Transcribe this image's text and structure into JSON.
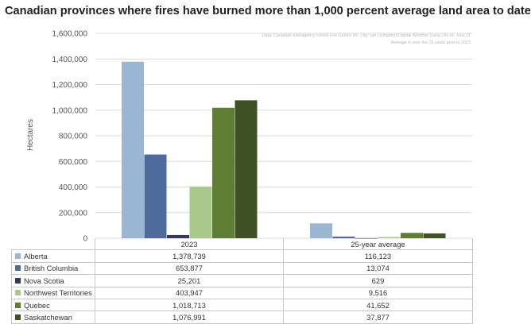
{
  "chart_data": {
    "type": "bar",
    "title": "Canadian provinces where fires have burned more than 1,000 percent average land area to date",
    "source_lines": [
      "Data: Canadian Interagency Forest Fire Centre Inc. | By: Ian Livingston/Capital Weather Gang | As of: June 11",
      "Average is over the 25 years prior to 2023"
    ],
    "ylabel": "Hectares",
    "ylim": [
      0,
      1600000
    ],
    "yticks": [
      "0",
      "200,000",
      "400,000",
      "600,000",
      "800,000",
      "1,000,000",
      "1,200,000",
      "1,400,000",
      "1,600,000"
    ],
    "ytick_values": [
      0,
      200000,
      400000,
      600000,
      800000,
      1000000,
      1200000,
      1400000,
      1600000
    ],
    "categories": [
      "2023",
      "25-year average"
    ],
    "grid": true,
    "legend": "data-table",
    "series": [
      {
        "name": "Alberta",
        "color": "#9bb6d3",
        "values": [
          1378739,
          116123
        ],
        "labels": [
          "1,378,739",
          "116,123"
        ]
      },
      {
        "name": "British Columbia",
        "color": "#4e6a9b",
        "values": [
          653877,
          13074
        ],
        "labels": [
          "653,877",
          "13,074"
        ]
      },
      {
        "name": "Nova Scotia",
        "color": "#323a5c",
        "values": [
          25201,
          629
        ],
        "labels": [
          "25,201",
          "629"
        ]
      },
      {
        "name": "Northwest Territories",
        "color": "#a8c98a",
        "values": [
          403947,
          9516
        ],
        "labels": [
          "403,947",
          "9,516"
        ]
      },
      {
        "name": "Quebec",
        "color": "#5e7e34",
        "values": [
          1018713,
          41652
        ],
        "labels": [
          "1,018,713",
          "41,652"
        ]
      },
      {
        "name": "Saskatchewan",
        "color": "#3e5226",
        "values": [
          1076991,
          37877
        ],
        "labels": [
          "1,076,991",
          "37,877"
        ]
      }
    ]
  }
}
